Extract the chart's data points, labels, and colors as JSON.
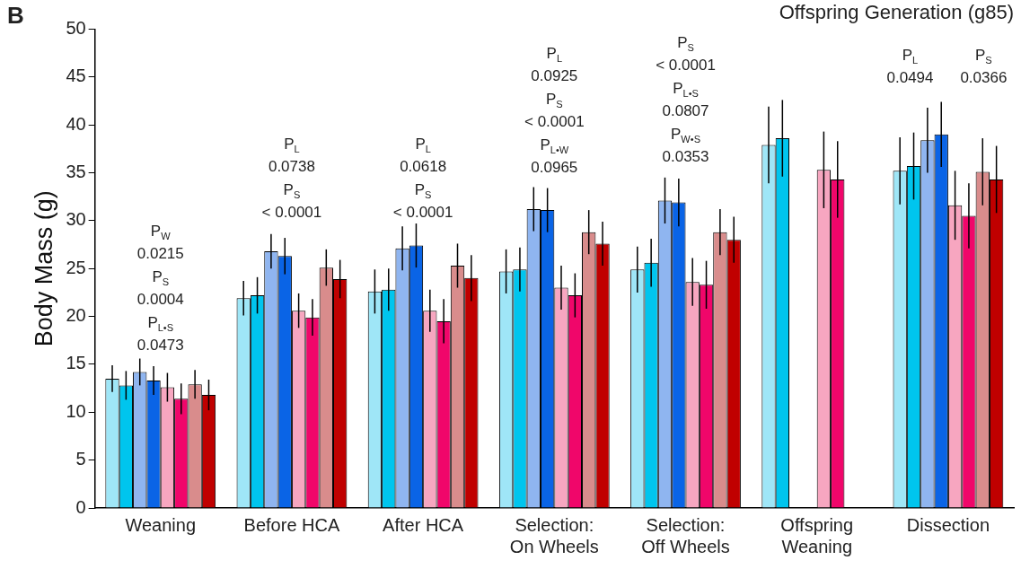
{
  "chart_data": {
    "type": "bar",
    "title": "Offspring Generation (g85)",
    "ylabel": "Body Mass (g)",
    "categories": [
      "Weaning",
      "Before HCA",
      "After HCA",
      "Selection:\nOn Wheels",
      "Selection:\nOff Wheels",
      "Offspring\nWeaning",
      "Dissection"
    ],
    "series": [
      {
        "color": "#9fe6f7",
        "values": [
          13.5,
          21.9,
          22.6,
          24.7,
          24.9,
          37.9,
          35.2
        ],
        "errors": [
          1.4,
          1.8,
          2.3,
          2.3,
          2.4,
          4.0,
          3.5
        ]
      },
      {
        "color": "#00c5ee",
        "values": [
          12.8,
          22.2,
          22.8,
          24.9,
          25.6,
          38.6,
          35.7
        ],
        "errors": [
          1.5,
          1.9,
          2.2,
          2.3,
          2.5,
          4.0,
          3.5
        ]
      },
      {
        "color": "#8fb5f0",
        "values": [
          14.2,
          26.8,
          27.1,
          31.2,
          32.1,
          null,
          38.4
        ],
        "errors": [
          1.4,
          1.8,
          2.3,
          2.3,
          2.4,
          null,
          3.4
        ]
      },
      {
        "color": "#0a64e6",
        "values": [
          13.3,
          26.3,
          27.4,
          31.1,
          31.9,
          null,
          39.0
        ],
        "errors": [
          1.5,
          1.9,
          2.3,
          2.3,
          2.5,
          null,
          3.4
        ]
      },
      {
        "color": "#f7a6c0",
        "values": [
          12.6,
          20.6,
          20.6,
          23.0,
          23.6,
          35.3,
          31.6
        ],
        "errors": [
          1.5,
          1.8,
          2.2,
          2.3,
          2.5,
          4.0,
          3.6
        ]
      },
      {
        "color": "#f0066a",
        "values": [
          11.4,
          19.9,
          19.5,
          22.2,
          23.3,
          34.3,
          30.5
        ],
        "errors": [
          1.6,
          1.9,
          2.3,
          2.3,
          2.5,
          4.0,
          3.4
        ]
      },
      {
        "color": "#d98c8c",
        "values": [
          12.9,
          25.1,
          25.3,
          28.8,
          28.8,
          null,
          35.1
        ],
        "errors": [
          1.5,
          1.9,
          2.3,
          2.3,
          2.4,
          null,
          3.5
        ]
      },
      {
        "color": "#c00000",
        "values": [
          11.8,
          23.9,
          24.0,
          27.6,
          28.0,
          null,
          34.3
        ],
        "errors": [
          1.6,
          2.0,
          2.4,
          2.3,
          2.4,
          null,
          3.5
        ]
      }
    ],
    "ylim": [
      0,
      50
    ],
    "yticks": [
      0,
      5,
      10,
      15,
      20,
      25,
      30,
      35,
      40,
      45,
      50
    ],
    "grid": false,
    "legend": false,
    "annotations": [
      "B",
      "P$_{W}$\n0.0215\nP$_{S}$\n0.0004\nP$_{L•S}$\n0.0473",
      "P$_{L}$\n0.0738\nP$_{S}$\n< 0.0001",
      "P$_{L}$\n0.0618\nP$_{S}$\n< 0.0001",
      "P$_{L}$\n0.0925\nP$_{S}$\n< 0.0001\nP$_{L•W}$\n0.0965",
      "P$_{S}$\n< 0.0001\nP$_{L•S}$\n0.0807\nP$_{W•S}$\n0.0353",
      "P$_{L}$\n0.0494",
      "P$_{S}$\n0.0366"
    ]
  }
}
